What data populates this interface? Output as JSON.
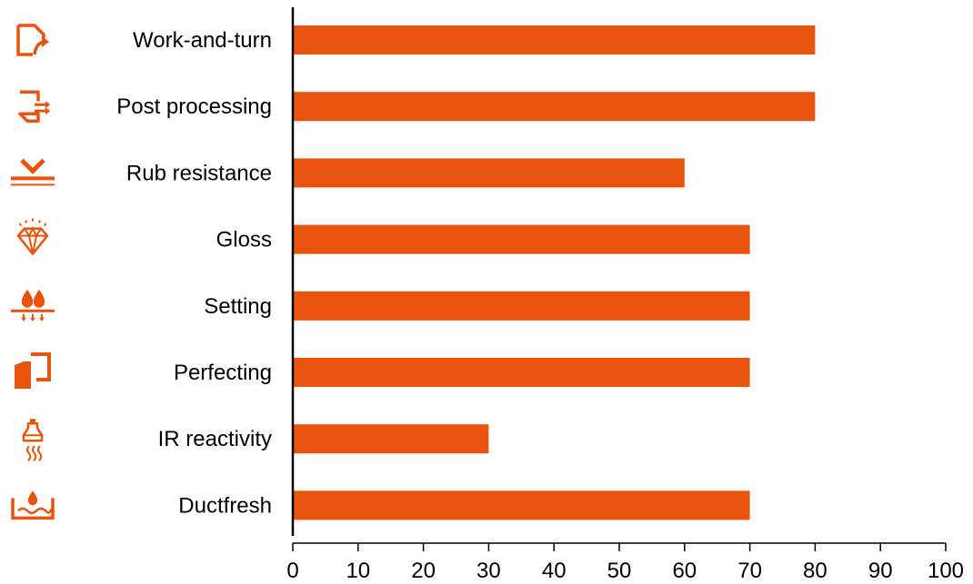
{
  "chart_data": {
    "type": "bar",
    "orientation": "horizontal",
    "categories": [
      "Work-and-turn",
      "Post processing",
      "Rub resistance",
      "Gloss",
      "Setting",
      "Perfecting",
      "IR reactivity",
      "Ductfresh"
    ],
    "values": [
      80,
      80,
      60,
      70,
      70,
      70,
      30,
      70
    ],
    "icons": [
      "page-turn-icon",
      "post-processing-icon",
      "rub-resistance-icon",
      "gloss-diamond-icon",
      "setting-drops-icon",
      "perfecting-icon",
      "ir-lamp-icon",
      "ductfresh-icon"
    ],
    "xlim": [
      0,
      100
    ],
    "xticks": [
      0,
      10,
      20,
      30,
      40,
      50,
      60,
      70,
      80,
      90,
      100
    ],
    "xlabel": "",
    "ylabel": "",
    "title": "",
    "grid": false,
    "legend": "none",
    "bar_color": "#E8530E",
    "icon_color": "#E8530E"
  }
}
